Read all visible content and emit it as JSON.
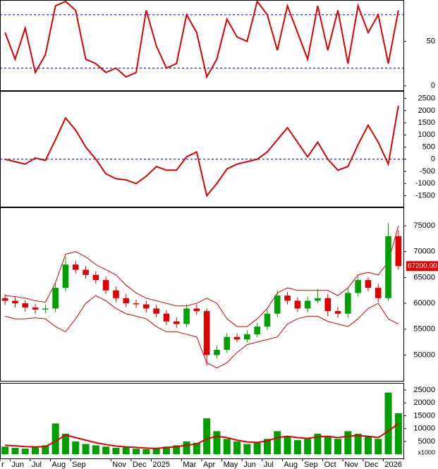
{
  "chart_data": [
    {
      "type": "line",
      "ylim": [
        -5,
        95
      ],
      "yticks": [
        0,
        50
      ],
      "levels": [
        20,
        80
      ],
      "series": [
        {
          "color": "#e00000",
          "values": [
            60,
            30,
            65,
            15,
            35,
            90,
            95,
            85,
            30,
            25,
            15,
            20,
            10,
            15,
            85,
            45,
            20,
            25,
            80,
            60,
            10,
            30,
            75,
            55,
            50,
            95,
            80,
            40,
            90,
            60,
            30,
            90,
            40,
            85,
            25,
            90,
            60,
            80,
            25,
            85
          ]
        }
      ]
    },
    {
      "type": "line",
      "ylim": [
        -1950,
        2750
      ],
      "yticks": [
        -1500,
        -1000,
        -500,
        0,
        500,
        1000,
        1500,
        2000,
        2500
      ],
      "levels": [
        0
      ],
      "series": [
        {
          "color": "#e00000",
          "values": [
            0,
            -100,
            -200,
            50,
            -50,
            800,
            1700,
            1200,
            500,
            0,
            -600,
            -800,
            -850,
            -1000,
            -700,
            -300,
            -450,
            -450,
            100,
            300,
            -1500,
            -1000,
            -400,
            -200,
            -100,
            0,
            300,
            800,
            1300,
            700,
            100,
            700,
            0,
            -450,
            -300,
            600,
            1400,
            700,
            -200,
            2200
          ]
        }
      ]
    },
    {
      "type": "candlestick",
      "ylim": [
        45000,
        78300
      ],
      "yticks": [
        50000,
        55000,
        60000,
        65000,
        70000,
        75000
      ],
      "up_color": "#00a000",
      "down_color": "#e00000",
      "band_color": "#e00000",
      "open": [
        61000,
        60500,
        60000,
        59200,
        58800,
        59000,
        63000,
        67500,
        66500,
        65500,
        64500,
        62500,
        61000,
        60000,
        59800,
        59000,
        58000,
        56500,
        56000,
        59000,
        58500,
        50000,
        51000,
        53500,
        53000,
        54000,
        55500,
        58000,
        61500,
        60500,
        59000,
        60500,
        61000,
        58500,
        58000,
        62000,
        64500,
        63000,
        61000,
        73000
      ],
      "high": [
        61800,
        61200,
        60600,
        59900,
        59800,
        63800,
        69000,
        68200,
        67200,
        66200,
        65200,
        63200,
        61800,
        60700,
        60500,
        59700,
        58700,
        57300,
        59800,
        59800,
        59000,
        51800,
        54300,
        54200,
        54800,
        56200,
        58800,
        62500,
        62200,
        61200,
        61300,
        62800,
        61800,
        59300,
        62900,
        65300,
        65000,
        63800,
        75500,
        74200
      ],
      "low": [
        59700,
        59200,
        58400,
        58000,
        58100,
        58300,
        62300,
        65800,
        64800,
        63800,
        61800,
        60200,
        59300,
        59100,
        58200,
        57300,
        55800,
        55300,
        55400,
        57800,
        48000,
        49300,
        50400,
        52500,
        52400,
        53400,
        54800,
        57300,
        59800,
        58300,
        58300,
        60000,
        57500,
        57200,
        57200,
        61300,
        62300,
        60200,
        60500,
        66500
      ],
      "close": [
        60500,
        60000,
        59200,
        58800,
        59000,
        63000,
        67500,
        66500,
        65500,
        64500,
        62500,
        61000,
        60000,
        59800,
        59000,
        58000,
        56500,
        56000,
        59000,
        58500,
        50000,
        51000,
        53500,
        53000,
        54000,
        55500,
        58000,
        61500,
        60500,
        59000,
        60500,
        61000,
        58500,
        58000,
        62000,
        64500,
        63000,
        61000,
        73000,
        67200
      ],
      "upper": [
        61500,
        61300,
        61000,
        60500,
        60200,
        64000,
        69500,
        70000,
        69000,
        67500,
        66500,
        65500,
        63500,
        62000,
        61000,
        60500,
        60000,
        59500,
        59500,
        60000,
        61000,
        60000,
        57000,
        55500,
        55500,
        57000,
        59000,
        62000,
        63000,
        62500,
        62500,
        62500,
        62500,
        61500,
        63000,
        65500,
        66000,
        65500,
        68000,
        75000
      ],
      "lower": [
        57500,
        57000,
        57000,
        57200,
        57000,
        55500,
        54500,
        57000,
        60000,
        61500,
        60500,
        59000,
        58000,
        57500,
        57000,
        55500,
        54500,
        54500,
        54000,
        53500,
        48500,
        47500,
        48500,
        50500,
        52000,
        52500,
        53000,
        53500,
        56000,
        57000,
        57500,
        57500,
        56500,
        56000,
        55500,
        57000,
        59000,
        60000,
        57000,
        56000
      ],
      "current_price": {
        "value": 67200,
        "label": "67200.00"
      }
    },
    {
      "type": "bar",
      "ylim": [
        -1600,
        27200
      ],
      "yticks": [
        5000,
        10000,
        15000,
        20000,
        25000
      ],
      "unit_label": "x1000",
      "categories": [
        "r",
        "Jun",
        null,
        "Jul",
        null,
        "Aug",
        null,
        "Sep",
        null,
        null,
        null,
        "Nov",
        null,
        "Dec",
        null,
        "2025",
        null,
        null,
        "Mar",
        null,
        "Apr",
        null,
        "May",
        null,
        "Jun",
        null,
        "Jul",
        null,
        "Aug",
        null,
        "Sep",
        null,
        "Oct",
        null,
        "Nov",
        null,
        "Dec",
        null,
        "2026",
        null
      ],
      "series": [
        {
          "color": "#00a000",
          "values": [
            3000,
            2500,
            2200,
            2800,
            3500,
            12000,
            8000,
            5000,
            4000,
            3500,
            3000,
            2500,
            2800,
            2200,
            2000,
            2500,
            3000,
            3500,
            5000,
            4500,
            14000,
            9000,
            6000,
            5000,
            4000,
            4500,
            6000,
            9000,
            7000,
            5500,
            6000,
            8000,
            7000,
            6000,
            9000,
            8000,
            7000,
            6000,
            24000,
            16000
          ]
        },
        {
          "type": "line",
          "color": "#e00000",
          "values": [
            3500,
            3300,
            3000,
            2900,
            3000,
            5000,
            7500,
            6500,
            5500,
            4500,
            3800,
            3200,
            2900,
            2700,
            2400,
            2300,
            2600,
            3000,
            3500,
            4000,
            6000,
            7000,
            6500,
            5500,
            4800,
            4600,
            5200,
            6500,
            7000,
            6500,
            6200,
            6800,
            7000,
            6500,
            7000,
            7300,
            7000,
            6500,
            9000,
            12000
          ]
        }
      ]
    }
  ]
}
